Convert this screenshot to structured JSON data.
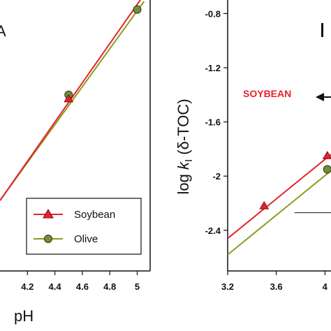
{
  "colors": {
    "soybean": "#e8212e",
    "olive": "#8c9a1c",
    "olive_marker_fill": "#6f8f3a",
    "axis": "#111111"
  },
  "chart_data": [
    {
      "type": "line",
      "panel": "A",
      "xlabel": "pH",
      "ylabel": "",
      "xlim": [
        4.0,
        5.0
      ],
      "ylim": [
        0,
        1
      ],
      "x_ticks": [
        "4.2",
        "4.4",
        "4.6",
        "4.8",
        "5"
      ],
      "x_tick_values": [
        4.2,
        4.4,
        4.6,
        4.8,
        5.0
      ],
      "legend": {
        "position": "bottom-right",
        "entries": [
          "Soybean",
          "Olive"
        ]
      },
      "series": [
        {
          "name": "Soybean",
          "marker": "triangle",
          "fit_line": {
            "x": [
              4.0,
              5.05
            ],
            "y": [
              0.26,
              1.02
            ]
          },
          "points": [
            {
              "x": 4.5,
              "y": 0.635
            }
          ]
        },
        {
          "name": "Olive",
          "marker": "circle",
          "fit_line": {
            "x": [
              4.0,
              5.05
            ],
            "y": [
              0.26,
              0.995
            ]
          },
          "points": [
            {
              "x": 4.5,
              "y": 0.65
            },
            {
              "x": 5.0,
              "y": 0.965
            }
          ]
        }
      ]
    },
    {
      "type": "line",
      "panel": "B",
      "xlabel": "",
      "ylabel_parts": [
        "log ",
        "k",
        "I",
        " (δ-TOC)"
      ],
      "xlim": [
        3.2,
        4.05
      ],
      "ylim": [
        -2.7,
        -0.7
      ],
      "x_ticks": [
        "3.2",
        "3.6",
        "4"
      ],
      "x_tick_values": [
        3.2,
        3.6,
        4.0
      ],
      "y_ticks": [
        "-0.8",
        "-1.2",
        "-1.6",
        "-2",
        "-2.4"
      ],
      "y_tick_values": [
        -0.8,
        -1.2,
        -1.6,
        -2.0,
        -2.4
      ],
      "annotation": "SOYBEAN",
      "series": [
        {
          "name": "Soybean",
          "marker": "triangle",
          "fit_line": {
            "x": [
              3.2,
              4.05
            ],
            "y": [
              -2.46,
              -1.84
            ]
          },
          "points": [
            {
              "x": 3.5,
              "y": -2.22
            },
            {
              "x": 4.02,
              "y": -1.85
            }
          ]
        },
        {
          "name": "Olive",
          "marker": "circle",
          "fit_line": {
            "x": [
              3.2,
              4.05
            ],
            "y": [
              -2.58,
              -1.96
            ]
          },
          "points": [
            {
              "x": 4.02,
              "y": -1.95
            }
          ]
        }
      ],
      "reference_line": {
        "x": [
          3.75,
          4.05
        ],
        "y": -2.27
      }
    }
  ]
}
